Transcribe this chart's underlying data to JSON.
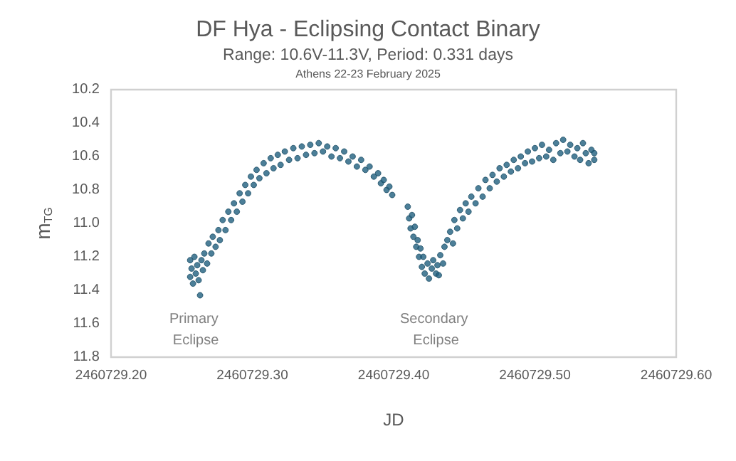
{
  "chart_data": {
    "type": "scatter",
    "title": "DF Hya - Eclipsing Contact Binary",
    "subtitle": "Range: 10.6V-11.3V, Period: 0.331 days",
    "xlabel": "JD",
    "ylabel": "m$_{TG}$",
    "annotations": [
      "Athens 22-23 February 2025",
      "Primary Eclipse",
      "Secondary Eclipse"
    ],
    "xlim": [
      2460729.2,
      2460729.6
    ],
    "xticks": [
      {
        "value": 2460729.2,
        "label": "2460729.20"
      },
      {
        "value": 2460729.3,
        "label": "2460729.30"
      },
      {
        "value": 2460729.4,
        "label": "2460729.40"
      },
      {
        "value": 2460729.5,
        "label": "2460729.50"
      },
      {
        "value": 2460729.6,
        "label": "2460729.60"
      }
    ],
    "ylim": [
      11.8,
      10.2
    ],
    "yticks": [
      10.2,
      10.4,
      10.6,
      10.8,
      {
        "value": 11,
        "label": "11.0"
      },
      11.2,
      11.4,
      11.6,
      11.8
    ],
    "grid": false,
    "marker": "circle",
    "series": [
      {
        "color": "#1f5f7e",
        "x": [
          2460729.256,
          2460729.256,
          2460729.257,
          2460729.258,
          2460729.259,
          2460729.26,
          2460729.261,
          2460729.262,
          2460729.263,
          2460729.264,
          2460729.265,
          2460729.266,
          2460729.268,
          2460729.269,
          2460729.271,
          2460729.272,
          2460729.274,
          2460729.276,
          2460729.277,
          2460729.279,
          2460729.281,
          2460729.283,
          2460729.285,
          2460729.287,
          2460729.289,
          2460729.291,
          2460729.293,
          2460729.295,
          2460729.297,
          2460729.299,
          2460729.301,
          2460729.303,
          2460729.305,
          2460729.308,
          2460729.31,
          2460729.313,
          2460729.315,
          2460729.318,
          2460729.32,
          2460729.323,
          2460729.326,
          2460729.329,
          2460729.332,
          2460729.335,
          2460729.338,
          2460729.341,
          2460729.344,
          2460729.347,
          2460729.35,
          2460729.353,
          2460729.356,
          2460729.359,
          2460729.362,
          2460729.365,
          2460729.368,
          2460729.371,
          2460729.374,
          2460729.377,
          2460729.38,
          2460729.383,
          2460729.386,
          2460729.389,
          2460729.391,
          2460729.393,
          2460729.395,
          2460729.397,
          2460729.399,
          2460729.41,
          2460729.411,
          2460729.412,
          2460729.413,
          2460729.414,
          2460729.415,
          2460729.416,
          2460729.417,
          2460729.418,
          2460729.419,
          2460729.42,
          2460729.421,
          2460729.422,
          2460729.424,
          2460729.425,
          2460729.427,
          2460729.428,
          2460729.43,
          2460729.431,
          2460729.432,
          2460729.433,
          2460729.435,
          2460729.436,
          2460729.438,
          2460729.44,
          2460729.442,
          2460729.443,
          2460729.445,
          2460729.447,
          2460729.449,
          2460729.451,
          2460729.453,
          2460729.455,
          2460729.458,
          2460729.46,
          2460729.463,
          2460729.465,
          2460729.468,
          2460729.47,
          2460729.473,
          2460729.475,
          2460729.478,
          2460729.48,
          2460729.483,
          2460729.485,
          2460729.488,
          2460729.49,
          2460729.493,
          2460729.495,
          2460729.498,
          2460729.5,
          2460729.503,
          2460729.505,
          2460729.508,
          2460729.51,
          2460729.513,
          2460729.515,
          2460729.518,
          2460729.52,
          2460729.523,
          2460729.525,
          2460729.528,
          2460729.53,
          2460729.532,
          2460729.534,
          2460729.536,
          2460729.538,
          2460729.54,
          2460729.542,
          2460729.542
        ],
        "values": [
          11.22,
          11.32,
          11.27,
          11.36,
          11.2,
          11.3,
          11.25,
          11.34,
          11.43,
          11.22,
          11.28,
          11.18,
          11.24,
          11.12,
          11.18,
          11.08,
          11.14,
          11.04,
          11.1,
          10.98,
          11.04,
          10.93,
          10.98,
          10.88,
          10.93,
          10.82,
          10.87,
          10.77,
          10.82,
          10.72,
          10.77,
          10.68,
          10.73,
          10.64,
          10.7,
          10.61,
          10.67,
          10.59,
          10.65,
          10.57,
          10.62,
          10.55,
          10.61,
          10.54,
          10.59,
          10.53,
          10.58,
          10.52,
          10.57,
          10.54,
          10.6,
          10.55,
          10.61,
          10.57,
          10.63,
          10.6,
          10.66,
          10.62,
          10.68,
          10.66,
          10.72,
          10.7,
          10.76,
          10.74,
          10.8,
          10.78,
          10.83,
          10.9,
          10.97,
          11.03,
          10.95,
          11.08,
          11.02,
          11.14,
          11.1,
          11.2,
          11.15,
          11.26,
          11.2,
          11.3,
          11.24,
          11.33,
          11.27,
          11.22,
          11.3,
          11.25,
          11.31,
          11.19,
          11.24,
          11.14,
          11.1,
          11.05,
          11.12,
          10.98,
          11.03,
          10.92,
          10.97,
          10.88,
          10.93,
          10.84,
          10.88,
          10.79,
          10.84,
          10.74,
          10.79,
          10.71,
          10.75,
          10.67,
          10.72,
          10.65,
          10.69,
          10.62,
          10.67,
          10.6,
          10.64,
          10.57,
          10.63,
          10.55,
          10.61,
          10.53,
          10.6,
          10.56,
          10.62,
          10.52,
          10.58,
          10.5,
          10.57,
          10.53,
          10.6,
          10.55,
          10.62,
          10.52,
          10.58,
          10.64,
          10.56,
          10.62,
          10.58
        ]
      }
    ]
  }
}
